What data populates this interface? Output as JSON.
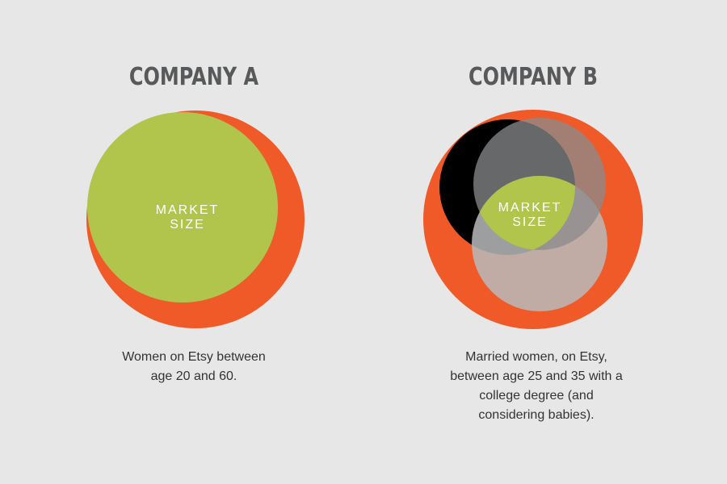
{
  "panels": [
    {
      "title": "COMPANY A",
      "label": [
        "MARKET",
        "SIZE"
      ],
      "description": [
        "Women on Etsy between",
        "age 20 and 60."
      ]
    },
    {
      "title": "COMPANY B",
      "label": [
        "MARKET",
        "SIZE"
      ],
      "description": [
        "Married women, on Etsy,",
        "between age 25 and 35 with a",
        "college degree (and",
        "considering babies)."
      ]
    }
  ]
}
